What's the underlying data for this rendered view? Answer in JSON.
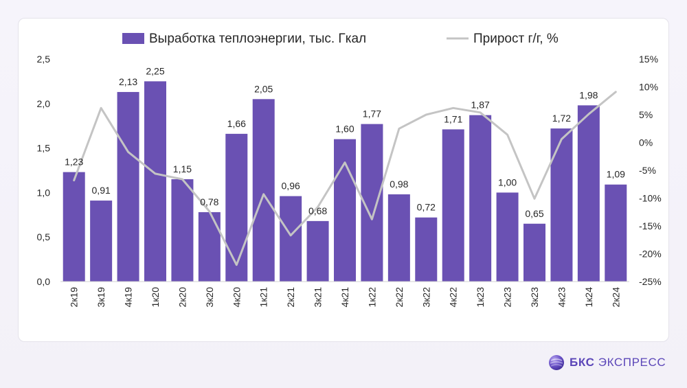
{
  "chart_data": {
    "type": "bar",
    "categories": [
      "2к19",
      "3к19",
      "4к19",
      "1к20",
      "2к20",
      "3к20",
      "4к20",
      "1к21",
      "2к21",
      "3к21",
      "4к21",
      "1к22",
      "2к22",
      "3к22",
      "4к22",
      "1к23",
      "2к23",
      "3к23",
      "4к23",
      "1к24",
      "2к24"
    ],
    "series": [
      {
        "name": "Выработка теплоэнергии, тыс. Гкал",
        "type": "bar",
        "axis": "left",
        "color": "#6a51b3",
        "values": [
          1.23,
          0.91,
          2.13,
          2.25,
          1.15,
          0.78,
          1.66,
          2.05,
          0.96,
          0.68,
          1.6,
          1.77,
          0.98,
          0.72,
          1.71,
          1.87,
          1.0,
          0.65,
          1.72,
          1.98,
          1.09
        ],
        "labels": [
          "1,23",
          "0,91",
          "2,13",
          "2,25",
          "1,15",
          "0,78",
          "1,66",
          "2,05",
          "0,96",
          "0,68",
          "1,60",
          "1,77",
          "0,98",
          "0,72",
          "1,71",
          "1,87",
          "1,00",
          "0,65",
          "1,72",
          "1,98",
          "1,09"
        ]
      },
      {
        "name": "Прирост г/г, %",
        "type": "line",
        "axis": "right",
        "color": "#c4c4c4",
        "values": [
          -6.8,
          6.2,
          -1.7,
          -5.6,
          -6.6,
          -12.4,
          -22.0,
          -9.3,
          -16.7,
          -11.6,
          -3.6,
          -13.8,
          2.5,
          5.0,
          6.2,
          5.4,
          1.4,
          -10.1,
          0.6,
          5.1,
          9.1
        ]
      }
    ],
    "y_left": {
      "ylim": [
        0,
        2.5
      ],
      "ticks": [
        0,
        0.5,
        1.0,
        1.5,
        2.0,
        2.5
      ],
      "tick_labels": [
        "0,0",
        "0,5",
        "1,0",
        "1,5",
        "2,0",
        "2,5"
      ]
    },
    "y_right": {
      "ylim": [
        -25,
        15
      ],
      "ticks": [
        -25,
        -20,
        -15,
        -10,
        -5,
        0,
        5,
        10,
        15
      ],
      "tick_labels": [
        "-25%",
        "-20%",
        "-15%",
        "-10%",
        "-5%",
        "0%",
        "5%",
        "10%",
        "15%"
      ]
    },
    "legend": {
      "position": "top"
    },
    "grid": false
  },
  "brand": {
    "bold": "БКС",
    "light": "ЭКСПРЕСС",
    "logo_icon": "bks-sphere-icon"
  },
  "colors": {
    "bar": "#6a51b3",
    "line": "#c4c4c4",
    "text": "#262626",
    "brand": "#5b46b8"
  }
}
